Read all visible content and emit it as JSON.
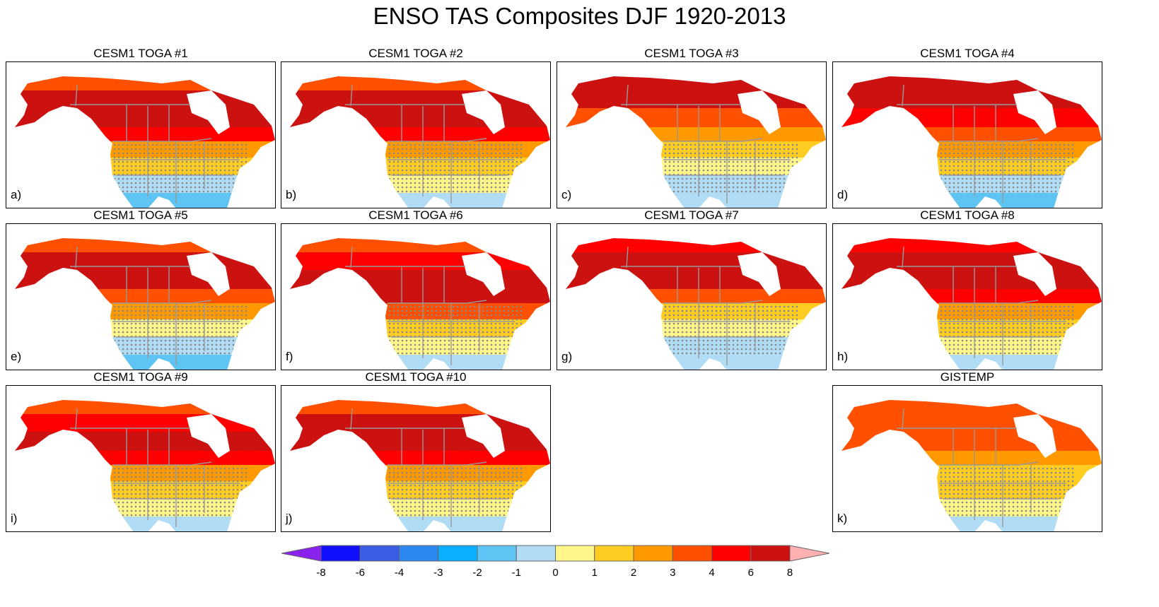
{
  "title": "ENSO TAS Composites DJF 1920-2013",
  "colorbar": {
    "levels": [
      "-8",
      "-6",
      "-4",
      "-3",
      "-2",
      "-1",
      "0",
      "1",
      "2",
      "3",
      "4",
      "6",
      "8"
    ],
    "colors": [
      "#8a22ee",
      "#1010ff",
      "#3b5ce4",
      "#2a88f0",
      "#0ab0ff",
      "#5ec4f4",
      "#b0dcf5",
      "#fff68a",
      "#ffcc22",
      "#ff9900",
      "#ff5000",
      "#ff0000",
      "#cc1111",
      "#ffb0b0"
    ]
  },
  "panels": [
    {
      "title": "CESM1 TOGA #1",
      "label": "a)",
      "bands": [
        3,
        5,
        5,
        4,
        2,
        1,
        -1,
        -2
      ]
    },
    {
      "title": "CESM1 TOGA #2",
      "label": "b)",
      "bands": [
        3,
        5,
        5,
        4,
        2,
        1,
        0,
        -1
      ]
    },
    {
      "title": "CESM1 TOGA #3",
      "label": "c)",
      "bands": [
        5,
        5,
        3,
        2,
        1,
        0,
        -1,
        -1
      ]
    },
    {
      "title": "CESM1 TOGA #4",
      "label": "d)",
      "bands": [
        5,
        5,
        4,
        3,
        2,
        1,
        -1,
        -2
      ]
    },
    {
      "title": "CESM1 TOGA #5",
      "label": "e)",
      "bands": [
        3,
        5,
        5,
        3,
        2,
        0,
        -1,
        -2
      ]
    },
    {
      "title": "CESM1 TOGA #6",
      "label": "f)",
      "bands": [
        3,
        4,
        5,
        5,
        3,
        1,
        0,
        -1
      ]
    },
    {
      "title": "CESM1 TOGA #7",
      "label": "g)",
      "bands": [
        4,
        5,
        5,
        3,
        1,
        0,
        -1,
        -1
      ]
    },
    {
      "title": "CESM1 TOGA #8",
      "label": "h)",
      "bands": [
        4,
        5,
        5,
        4,
        2,
        1,
        0,
        -1
      ]
    },
    {
      "title": "CESM1 TOGA #9",
      "label": "i)",
      "bands": [
        3,
        4,
        5,
        4,
        2,
        1,
        0,
        -1
      ]
    },
    {
      "title": "CESM1 TOGA #10",
      "label": "j)",
      "bands": [
        3,
        5,
        5,
        4,
        2,
        1,
        0,
        -1
      ]
    },
    {
      "title": "GISTEMP",
      "label": "k)",
      "bands": [
        3,
        3,
        3,
        2,
        1,
        1,
        0,
        -1
      ]
    }
  ]
}
